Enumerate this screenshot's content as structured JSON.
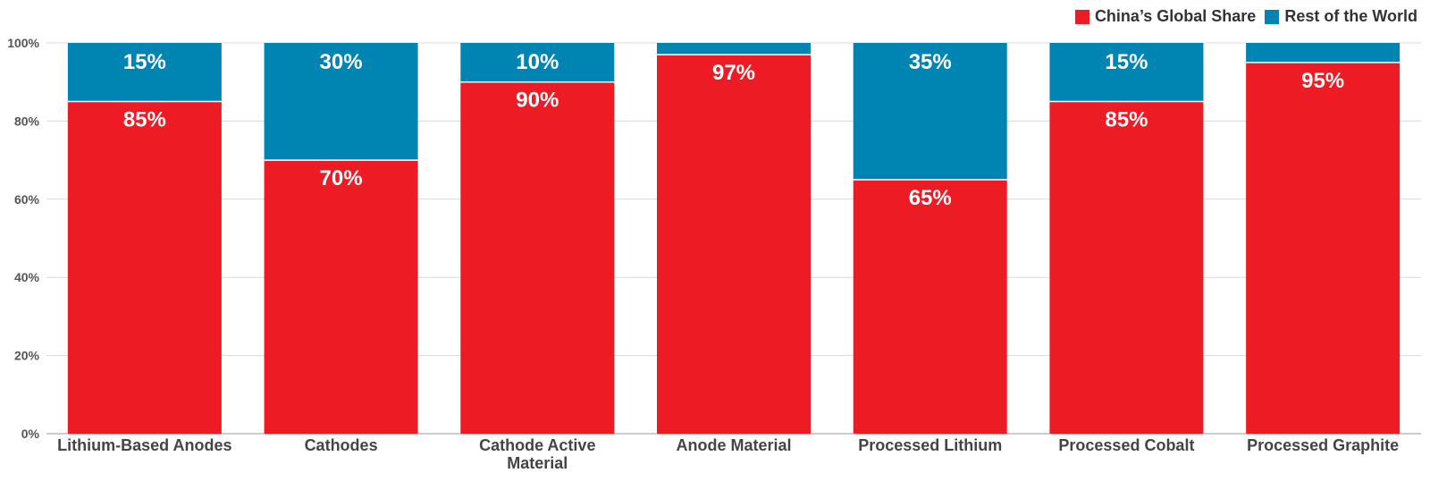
{
  "chart_data": {
    "type": "bar",
    "stacked": true,
    "categories": [
      "Lithium-Based Anodes",
      "Cathodes",
      "Cathode Active Material",
      "Anode Material",
      "Processed Lithium",
      "Processed Cobalt",
      "Processed Graphite"
    ],
    "series": [
      {
        "name": "China’s Global Share",
        "color": "#ed1c24",
        "values": [
          85,
          70,
          90,
          97,
          65,
          85,
          95
        ],
        "labels": [
          "85%",
          "70%",
          "90%",
          "97%",
          "65%",
          "85%",
          "95%"
        ]
      },
      {
        "name": "Rest of the World",
        "color": "#0085b2",
        "values": [
          15,
          30,
          10,
          3,
          35,
          15,
          5
        ],
        "labels": [
          "15%",
          "30%",
          "10%",
          "",
          "35%",
          "15%",
          ""
        ]
      }
    ],
    "ylim": [
      0,
      100
    ],
    "yticks": [
      "0%",
      "20%",
      "40%",
      "60%",
      "80%",
      "100%"
    ],
    "grid": true,
    "legend_position": "top-right",
    "title": "",
    "xlabel": "",
    "ylabel": ""
  }
}
